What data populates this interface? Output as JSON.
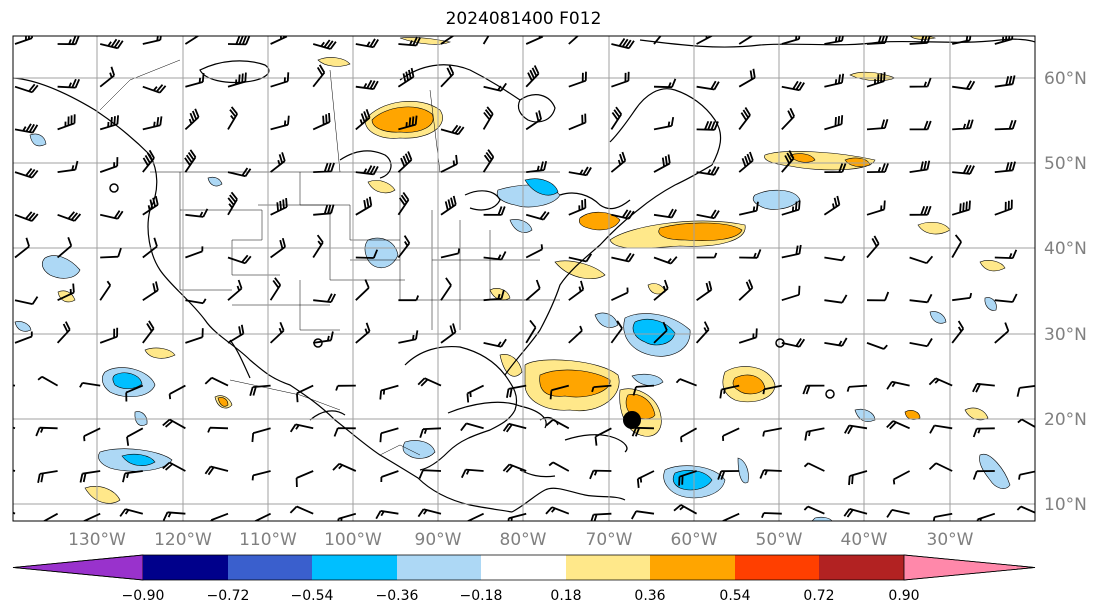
{
  "title": "2024081400 F012",
  "map": {
    "lon_labels": [
      "130°W",
      "120°W",
      "110°W",
      "100°W",
      "90°W",
      "80°W",
      "70°W",
      "60°W",
      "50°W",
      "40°W",
      "30°W"
    ],
    "lat_labels": [
      "60°N",
      "50°N",
      "40°N",
      "30°N",
      "20°N",
      "10°N"
    ],
    "storm_marker": {
      "lon": -67,
      "lat": 20,
      "label": ""
    },
    "colors": {
      "coast": "#000000",
      "grid": "#a0a0a0",
      "label": "#808080"
    }
  },
  "colorbar": {
    "ticks": [
      "−0.90",
      "−0.72",
      "−0.54",
      "−0.36",
      "−0.18",
      "0.18",
      "0.36",
      "0.54",
      "0.72",
      "0.90"
    ],
    "colors": [
      "#9932cc",
      "#00008b",
      "#3a5fcd",
      "#00bfff",
      "#add8f5",
      "#ffffff",
      "#ffe88a",
      "#ffa500",
      "#ff3f00",
      "#b22222",
      "#ff88aa"
    ]
  }
}
